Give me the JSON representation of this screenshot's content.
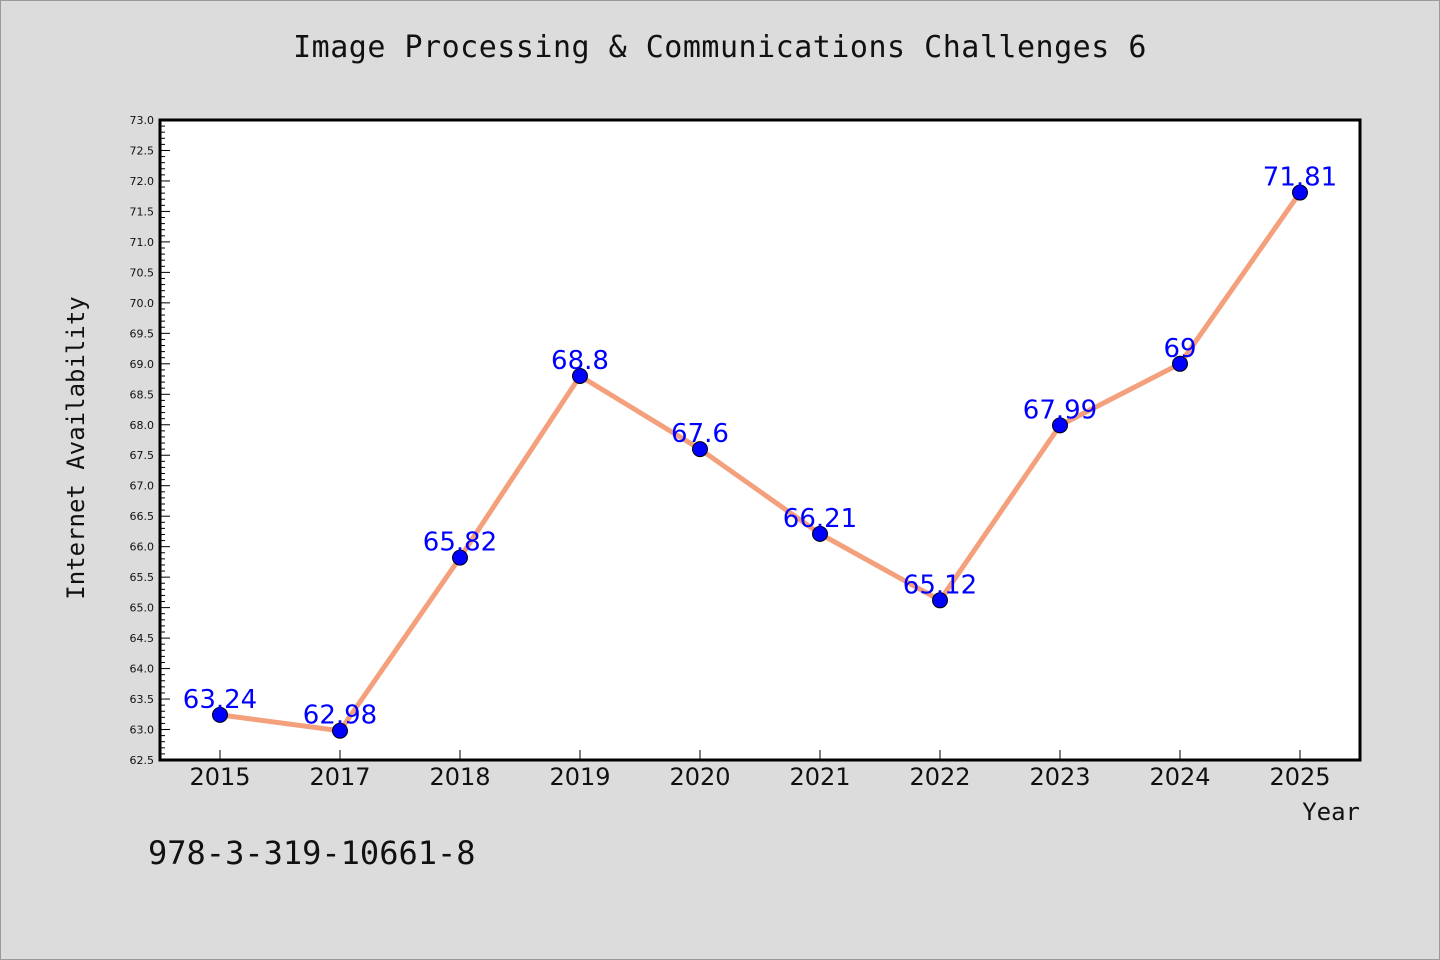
{
  "chart_data": {
    "type": "line",
    "title": "Image Processing & Communications Challenges 6",
    "xlabel": "Year",
    "ylabel": "Internet Availability",
    "categories": [
      "2015",
      "2017",
      "2018",
      "2019",
      "2020",
      "2021",
      "2022",
      "2023",
      "2024",
      "2025"
    ],
    "values": [
      63.24,
      62.98,
      65.82,
      68.8,
      67.6,
      66.21,
      65.12,
      67.99,
      69,
      71.81
    ],
    "value_labels": [
      "63.24",
      "62.98",
      "65.82",
      "68.8",
      "67.6",
      "66.21",
      "65.12",
      "67.99",
      "69",
      "71.81"
    ],
    "ylim": [
      62.5,
      73.0
    ],
    "yticks": [
      "62.5",
      "63.0",
      "63.5",
      "64.0",
      "64.5",
      "65.0",
      "65.5",
      "66.0",
      "66.5",
      "67.0",
      "67.5",
      "68.0",
      "68.5",
      "69.0",
      "69.5",
      "70.0",
      "70.5",
      "71.0",
      "71.5",
      "72.0",
      "72.5",
      "73.0"
    ],
    "grid": false,
    "legend": "none",
    "line_color": "#f4a07c",
    "marker_color": "#0000ff",
    "label_color": "#0000ff"
  },
  "footer": {
    "isbn": "978-3-319-10661-8"
  }
}
